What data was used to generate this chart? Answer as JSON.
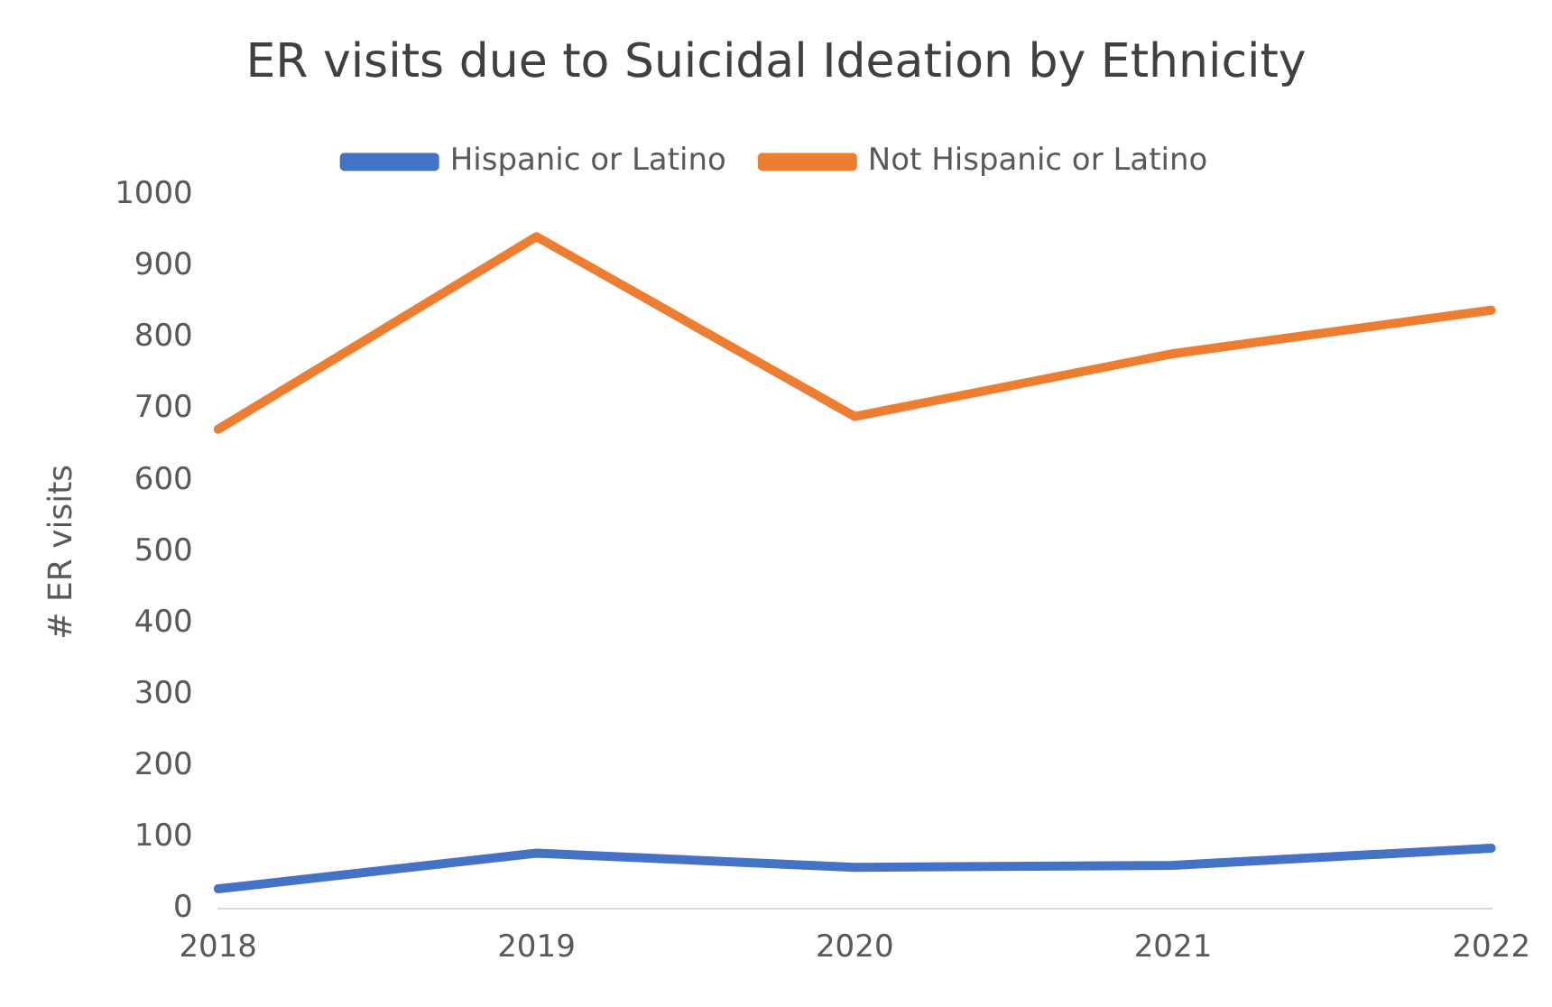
{
  "chart_data": {
    "type": "line",
    "title": "ER visits due to Suicidal Ideation by Ethnicity",
    "ylabel": "# ER visits",
    "categories": [
      "2018",
      "2019",
      "2020",
      "2021",
      "2022"
    ],
    "series": [
      {
        "name": "Hispanic or Latino",
        "color": "#4472c4",
        "values": [
          28,
          78,
          58,
          61,
          85
        ]
      },
      {
        "name": "Not Hispanic or Latino",
        "color": "#ed7d31",
        "values": [
          672,
          942,
          690,
          778,
          839
        ]
      }
    ],
    "ylim": [
      0,
      1000
    ],
    "yticks": [
      0,
      100,
      200,
      300,
      400,
      500,
      600,
      700,
      800,
      900,
      1000
    ],
    "grid": false,
    "legend": "top",
    "marker": "none",
    "line_style": "solid"
  }
}
